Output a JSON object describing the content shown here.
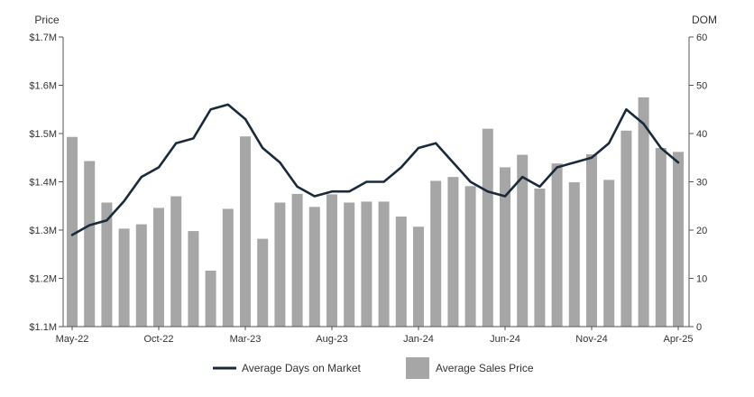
{
  "chart_data": {
    "type": "bar",
    "left_axis": {
      "title": "Price",
      "ylim": [
        1.1,
        1.7
      ],
      "ticks": [
        1.1,
        1.2,
        1.3,
        1.4,
        1.5,
        1.6,
        1.7
      ],
      "tick_labels": [
        "$1.1M",
        "$1.2M",
        "$1.3M",
        "$1.4M",
        "$1.5M",
        "$1.6M",
        "$1.7M"
      ]
    },
    "right_axis": {
      "title": "DOM",
      "ylim": [
        0,
        60
      ],
      "ticks": [
        0,
        10,
        20,
        30,
        40,
        50,
        60
      ],
      "tick_labels": [
        "0",
        "10",
        "20",
        "30",
        "40",
        "50",
        "60"
      ]
    },
    "x_tick_labels": [
      {
        "index": 0,
        "label": "May-22"
      },
      {
        "index": 5,
        "label": "Oct-22"
      },
      {
        "index": 10,
        "label": "Mar-23"
      },
      {
        "index": 15,
        "label": "Aug-23"
      },
      {
        "index": 20,
        "label": "Jan-24"
      },
      {
        "index": 25,
        "label": "Jun-24"
      },
      {
        "index": 30,
        "label": "Nov-24"
      },
      {
        "index": 35,
        "label": "Apr-25"
      }
    ],
    "grid": false,
    "legend_position": "bottom-center",
    "series": [
      {
        "name": "Average Sales Price",
        "type": "bar",
        "axis": "left",
        "color": "#a6a6a6",
        "values": [
          1.493,
          1.443,
          1.357,
          1.303,
          1.312,
          1.346,
          1.37,
          1.298,
          1.216,
          1.344,
          1.494,
          1.282,
          1.357,
          1.375,
          1.348,
          1.374,
          1.357,
          1.359,
          1.359,
          1.328,
          1.307,
          1.402,
          1.41,
          1.391,
          1.51,
          1.43,
          1.456,
          1.386,
          1.438,
          1.399,
          1.457,
          1.404,
          1.506,
          1.575,
          1.47,
          1.462
        ]
      },
      {
        "name": "Average Days on Market",
        "type": "line",
        "axis": "right",
        "color": "#1b2a3a",
        "values": [
          19,
          21,
          22,
          26,
          31,
          33,
          38,
          39,
          45,
          46,
          43,
          37,
          34,
          29,
          27,
          28,
          28,
          30,
          30,
          33,
          37,
          38,
          34,
          30,
          28,
          27,
          31,
          29,
          33,
          34,
          35,
          38,
          45,
          42,
          37,
          34
        ]
      }
    ]
  }
}
